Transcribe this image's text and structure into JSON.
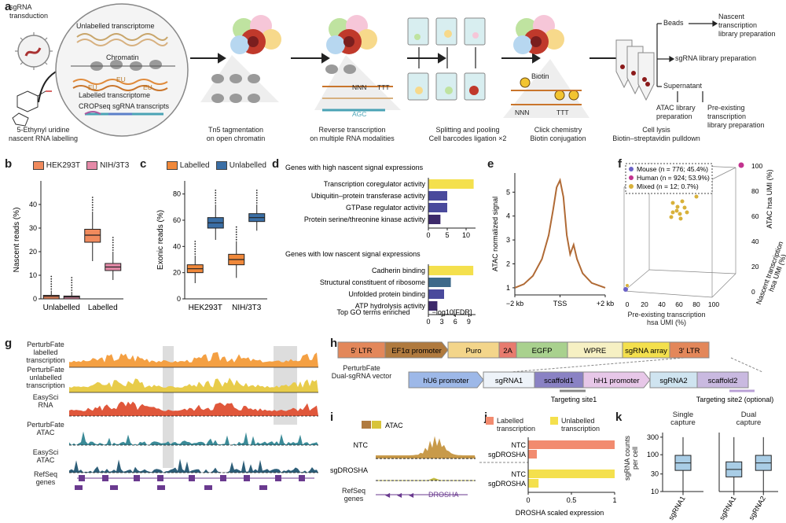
{
  "panel_labels": {
    "a": "a",
    "b": "b",
    "c": "c",
    "d": "d",
    "e": "e",
    "f": "f",
    "g": "g",
    "h": "h",
    "i": "i",
    "j": "j",
    "k": "k"
  },
  "a": {
    "sgrna_transduction": "sgRNA\ntransduction",
    "eu_label": "5-Ethynyl uridine\nnascent RNA labelling",
    "unlabelled_transcriptome": "Unlabelled transcriptome",
    "chromatin": "Chromatin",
    "labelled_transcriptome": "Labelled transcriptome",
    "cropseq": "CROPseq sgRNA transcripts",
    "eu": "EU",
    "nnn": "NNN",
    "ttt": "TTT",
    "agc": "AGC",
    "biotin": "Biotin",
    "step1": "Tn5 tagmentation\non open chromatin",
    "step2": "Reverse transcription\non multiple RNA modalities",
    "step3": "Splitting and pooling\nCell barcodes ligation ×2",
    "step4": "Click chemistry\nBiotin conjugation",
    "step5": "Cell lysis\nBiotin–streptavidin pulldown",
    "beads": "Beads",
    "nascent_lib": "Nascent\ntranscription\nlibrary preparation",
    "sgrna_lib": "sgRNA library preparation",
    "supernatant": "Supernatant",
    "atac_lib": "ATAC library\npreparation",
    "preexisting_lib": "Pre-existing\ntranscription\nlibrary preparation"
  },
  "chart_data": [
    {
      "panel": "b",
      "type": "box",
      "ylabel": "Nascent reads (%)",
      "ylim": [
        0,
        50
      ],
      "yticks": [
        "0",
        "10",
        "20",
        "30",
        "40"
      ],
      "categories": [
        "Unlabelled",
        "Labelled"
      ],
      "series": [
        {
          "name": "HEK293T",
          "color": "#f08a5d",
          "boxes": [
            {
              "q1": 0,
              "med": 1,
              "q3": 1.5,
              "wlo": 0,
              "whi": 3.5
            },
            {
              "q1": 24,
              "med": 27,
              "q3": 29.5,
              "wlo": 16,
              "whi": 37
            }
          ]
        },
        {
          "name": "NIH/3T3",
          "color": "#e58aa8",
          "boxes": [
            {
              "q1": 0,
              "med": 0.8,
              "q3": 1.2,
              "wlo": 0,
              "whi": 3
            },
            {
              "q1": 12,
              "med": 13.5,
              "q3": 15,
              "wlo": 8,
              "whi": 20
            }
          ]
        }
      ]
    },
    {
      "panel": "c",
      "type": "box",
      "ylabel": "Exonic reads (%)",
      "ylim": [
        0,
        90
      ],
      "yticks": [
        "0",
        "20",
        "40",
        "60",
        "80"
      ],
      "categories": [
        "HEK293T",
        "NIH/3T3"
      ],
      "series": [
        {
          "name": "Labelled",
          "color": "#f0883a",
          "boxes": [
            {
              "q1": 20,
              "med": 23,
              "q3": 26,
              "wlo": 12,
              "whi": 33
            },
            {
              "q1": 26,
              "med": 30,
              "q3": 34,
              "wlo": 16,
              "whi": 44
            }
          ]
        },
        {
          "name": "Unlabelled",
          "color": "#3a6ea5",
          "boxes": [
            {
              "q1": 54,
              "med": 58,
              "q3": 62,
              "wlo": 45,
              "whi": 72
            },
            {
              "q1": 59,
              "med": 62,
              "q3": 65,
              "wlo": 52,
              "whi": 72
            }
          ]
        }
      ]
    },
    {
      "panel": "d",
      "type": "bar",
      "title": "Top GO terms enriched",
      "xlabel": "−log10[FDR]",
      "groups": [
        {
          "title": "Genes with high nascent signal expressions",
          "xticks": [
            "0",
            "5",
            "10"
          ],
          "xlim": [
            0,
            12.5
          ],
          "categories": [
            "Transcription coregulator activity",
            "Ubiquitin–protein transferase activity",
            "GTPase regulator activity",
            "Protein serine/threonine kinase activity"
          ],
          "values": [
            12,
            5,
            5,
            3.2
          ],
          "colors": [
            "#f4e04d",
            "#4a4a9c",
            "#4a4a9c",
            "#3d2a6b"
          ]
        },
        {
          "title": "Genes with low nascent signal expressions",
          "xticks": [
            "0",
            "3",
            "6",
            "9"
          ],
          "xlim": [
            0,
            10.5
          ],
          "categories": [
            "Cadherin binding",
            "Structural constituent of ribosome",
            "Unfolded protein binding",
            "ATP hydrolysis activity"
          ],
          "values": [
            10,
            5,
            3.5,
            2
          ],
          "colors": [
            "#f4e04d",
            "#3e6a8a",
            "#4a4a9c",
            "#3d2a6b"
          ]
        }
      ]
    },
    {
      "panel": "e",
      "type": "line",
      "ylabel": "ATAC normalized signal",
      "xticks": [
        "−2 kb",
        "TSS",
        "+2 kb"
      ],
      "yticks": [
        "1",
        "2",
        "3",
        "4",
        "5"
      ],
      "ylim": [
        0.7,
        5.8
      ],
      "x": [
        -2,
        -1.6,
        -1.2,
        -0.8,
        -0.5,
        -0.3,
        -0.15,
        0,
        0.15,
        0.3,
        0.45,
        0.6,
        0.75,
        1.0,
        1.4,
        2
      ],
      "y": [
        1.0,
        1.15,
        1.5,
        2.2,
        3.2,
        4.3,
        5.2,
        5.5,
        4.8,
        3.2,
        2.4,
        2.8,
        2.2,
        1.6,
        1.2,
        1.0
      ],
      "color": "#b06a35"
    },
    {
      "panel": "f",
      "type": "scatter",
      "xlabel": "Pre-existing transcription\nhsa UMI (%)",
      "ylabel": "ATAC hsa UMI (%)",
      "zlabel": "Nascent transcription\nhsa UMI (%)",
      "ticks": [
        "0",
        "20",
        "40",
        "60",
        "80",
        "100"
      ],
      "legend": [
        {
          "name": "Mouse (n = 776; 45.4%)",
          "color": "#6b62c7"
        },
        {
          "name": "Human (n = 924; 53.9%)",
          "color": "#c2338f"
        },
        {
          "name": "Mixed (n = 12; 0.7%)",
          "color": "#d8b13a"
        }
      ]
    },
    {
      "panel": "j",
      "type": "bar",
      "xlabel": "DROSHA scaled expression",
      "xticks": [
        "0",
        "0.5",
        "1"
      ],
      "xlim": [
        0,
        1
      ],
      "legend": [
        {
          "name": "Labelled\ntranscription",
          "color": "#f28b6f"
        },
        {
          "name": "Unlabelled\ntranscription",
          "color": "#f4e04d"
        }
      ],
      "categories": [
        "NTC",
        "sgDROSHA",
        "NTC",
        "sgDROSHA"
      ],
      "values": [
        1.0,
        0.1,
        1.0,
        0.12
      ],
      "colors": [
        "#f28b6f",
        "#f28b6f",
        "#f4e04d",
        "#f4e04d"
      ]
    },
    {
      "panel": "k",
      "type": "box",
      "ylabel": "sgRNA counts\nper cell",
      "yticks": [
        "10",
        "30",
        "100",
        "300"
      ],
      "groups": [
        {
          "title": "Single\ncapture",
          "categories": [
            "sgRNA1"
          ]
        },
        {
          "title": "Dual\ncapture",
          "categories": [
            "sgRNA1",
            "sgRNA2"
          ]
        }
      ]
    }
  ],
  "b_legend": [
    "HEK293T",
    "NIH/3T3"
  ],
  "c_legend": [
    "Labelled",
    "Unlabelled"
  ],
  "g": {
    "tracks": [
      "PerturbFate\nlabelled\ntranscription",
      "PerturbFate\nunlabelled\ntranscription",
      "EasySci\nRNA",
      "PerturbFate\nATAC",
      "EasySci\nATAC",
      "RefSeq\ngenes"
    ],
    "colors": [
      "#f4a043",
      "#e8cc4a",
      "#e0573b",
      "#3a8a97",
      "#2d5e78",
      "#6a3a8f"
    ]
  },
  "h": {
    "row1": [
      "5′ LTR",
      "EF1α promoter",
      "Puro",
      "2A",
      "EGFP",
      "WPRE",
      "sgRNA array",
      "3′ LTR"
    ],
    "row1_colors": [
      "#e3875a",
      "#b07a3e",
      "#f3d58a",
      "#e87b6e",
      "#a9d18e",
      "#f6f0c3",
      "#f4e04d",
      "#e3875a"
    ],
    "vector_label": "PerturbFate\nDual-sgRNA vector",
    "row2": [
      "hU6 promoter",
      "sgRNA1",
      "scaffold1",
      "hH1 promoter",
      "sgRNA2",
      "scaffold2"
    ],
    "row2_colors": [
      "#9db8e8",
      "#eef3f9",
      "#8a82c4",
      "#e7c7e8",
      "#cfe4f0",
      "#c9b9e0"
    ],
    "target1": "Targeting site1",
    "target2": "Targeting site2 (optional)"
  },
  "i": {
    "legend": "ATAC",
    "tracks": [
      "NTC",
      "sgDROSHA",
      "RefSeq\ngenes"
    ],
    "gene": "DROSHA"
  }
}
